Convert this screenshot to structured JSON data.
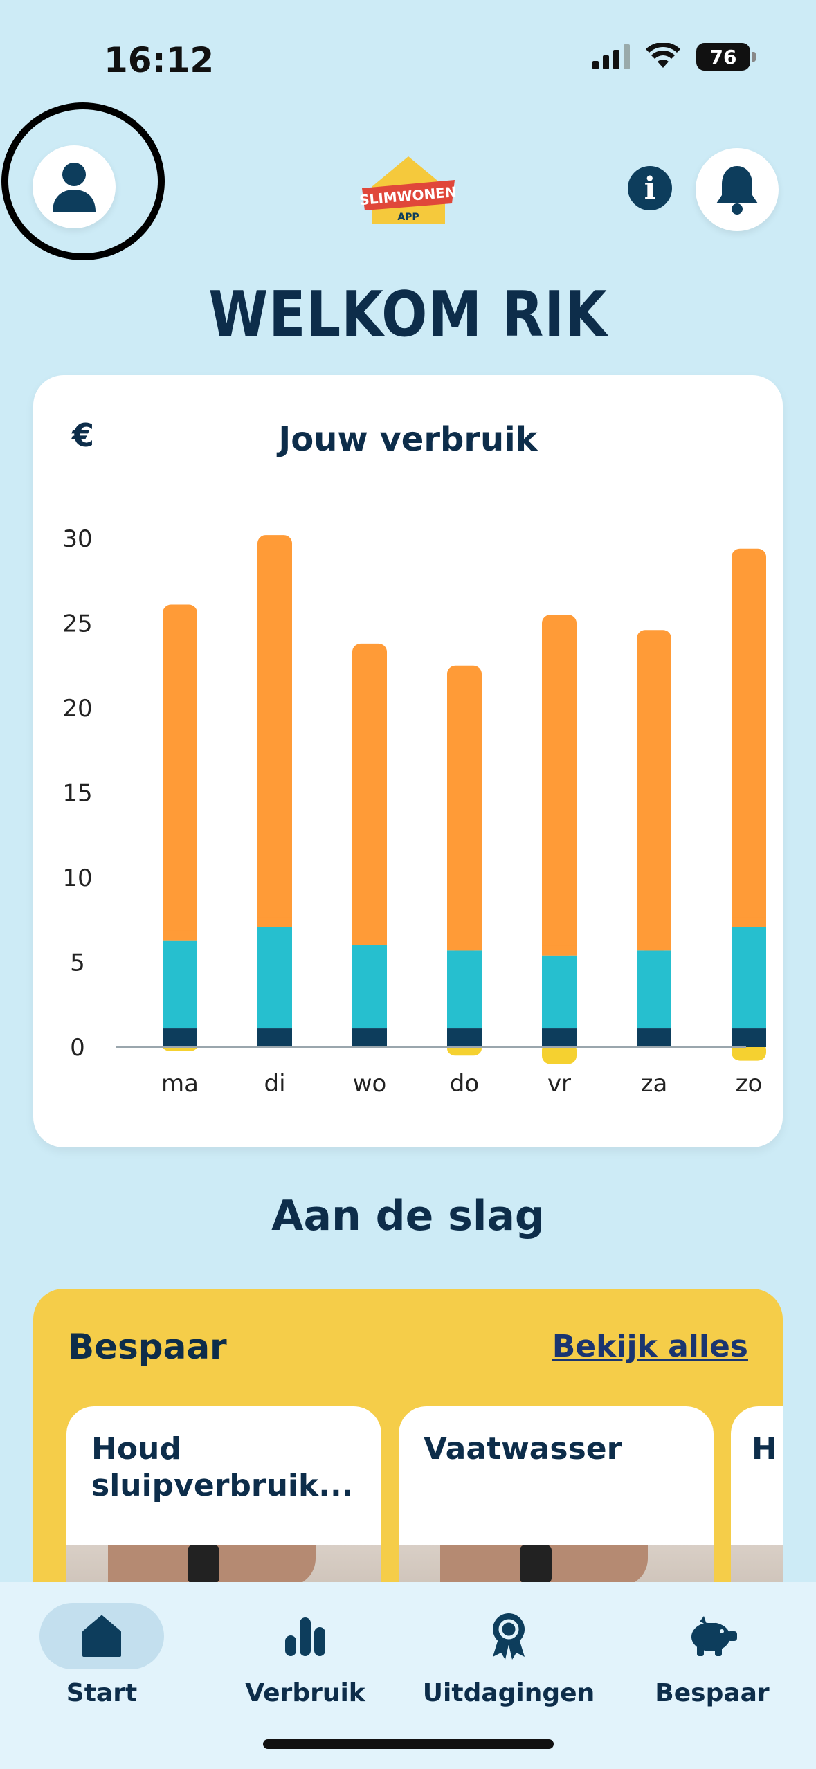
{
  "status_bar": {
    "time": "16:12",
    "battery": "76"
  },
  "header": {
    "logo_text": "SLIMWONEN",
    "logo_sub": "APP"
  },
  "welcome": "WELKOM RIK",
  "chart_card": {
    "currency_symbol": "€",
    "title": "Jouw verbruik"
  },
  "chart_data": {
    "type": "bar",
    "stacked": true,
    "categories": [
      "ma",
      "di",
      "wo",
      "do",
      "vr",
      "za",
      "zo"
    ],
    "series": [
      {
        "values": [
          1.1,
          1.1,
          1.1,
          1.1,
          1.1,
          1.1,
          1.1
        ],
        "color": "#0d3d5c"
      },
      {
        "values": [
          5.2,
          6.0,
          4.9,
          4.6,
          4.3,
          4.6,
          6.0
        ],
        "color": "#26bfcf"
      },
      {
        "values": [
          19.8,
          23.1,
          17.8,
          16.8,
          20.1,
          18.9,
          22.3
        ],
        "color": "#ff9b37"
      },
      {
        "values": [
          -0.2,
          0,
          0,
          -0.5,
          -1.0,
          0,
          -0.8
        ],
        "color": "#f5d130"
      }
    ],
    "yticks": [
      0,
      5,
      10,
      15,
      20,
      25,
      30
    ],
    "ylim": [
      -1,
      30
    ],
    "grid": false
  },
  "section_title": "Aan de slag",
  "bespaar": {
    "title": "Bespaar",
    "link": "Bekijk alles",
    "tips": [
      {
        "text": "Houd sluipverbruik..."
      },
      {
        "text": "Vaatwasser"
      },
      {
        "text": "H w"
      }
    ]
  },
  "nav": [
    {
      "label": "Start",
      "icon": "home-icon",
      "active": true
    },
    {
      "label": "Verbruik",
      "icon": "bar-chart-icon",
      "active": false
    },
    {
      "label": "Uitdagingen",
      "icon": "award-icon",
      "active": false
    },
    {
      "label": "Bespaar",
      "icon": "piggy-bank-icon",
      "active": false
    }
  ]
}
